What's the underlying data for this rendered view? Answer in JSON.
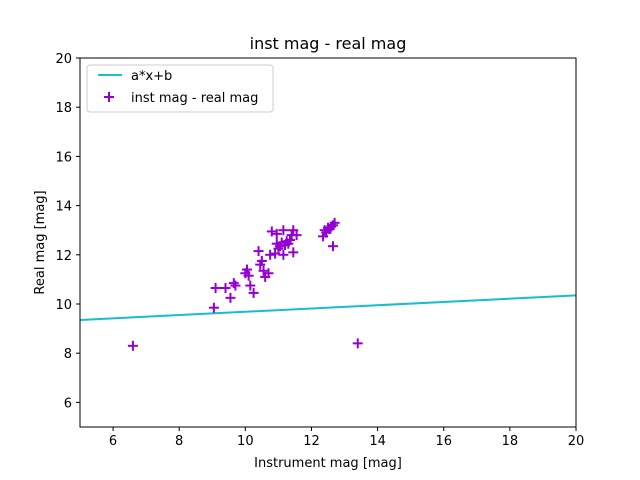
{
  "chart_data": {
    "type": "scatter",
    "title": "inst mag - real mag",
    "xlabel": "Instrument mag [mag]",
    "ylabel": "Real mag [mag]",
    "xlim": [
      5,
      20
    ],
    "ylim": [
      5,
      20
    ],
    "x_ticks": [
      "6",
      "8",
      "10",
      "12",
      "14",
      "16",
      "18",
      "20"
    ],
    "y_ticks": [
      "6",
      "8",
      "10",
      "12",
      "14",
      "16",
      "18",
      "20"
    ],
    "grid": false,
    "legend_position": "top-left",
    "colors": {
      "fit_line": "#17becf",
      "points": "#9400d3"
    },
    "fit_line": {
      "name": "a*x+b",
      "x": [
        5,
        20
      ],
      "y": [
        9.35,
        10.35
      ]
    },
    "series": [
      {
        "name": "inst mag - real mag",
        "marker": "plus",
        "points": [
          [
            6.6,
            8.3
          ],
          [
            9.05,
            9.85
          ],
          [
            9.1,
            10.65
          ],
          [
            9.4,
            10.65
          ],
          [
            9.55,
            10.25
          ],
          [
            9.65,
            10.85
          ],
          [
            9.7,
            10.75
          ],
          [
            10.0,
            11.25
          ],
          [
            10.05,
            11.4
          ],
          [
            10.1,
            11.15
          ],
          [
            10.15,
            10.75
          ],
          [
            10.25,
            10.45
          ],
          [
            10.4,
            12.15
          ],
          [
            10.45,
            11.6
          ],
          [
            10.5,
            11.75
          ],
          [
            10.55,
            11.35
          ],
          [
            10.6,
            11.1
          ],
          [
            10.7,
            11.25
          ],
          [
            10.75,
            12.0
          ],
          [
            10.8,
            12.95
          ],
          [
            10.9,
            12.05
          ],
          [
            10.95,
            12.45
          ],
          [
            10.95,
            12.85
          ],
          [
            11.0,
            12.25
          ],
          [
            11.05,
            12.35
          ],
          [
            11.1,
            12.5
          ],
          [
            11.15,
            12.0
          ],
          [
            11.15,
            13.0
          ],
          [
            11.2,
            12.4
          ],
          [
            11.25,
            12.55
          ],
          [
            11.3,
            12.45
          ],
          [
            11.35,
            12.6
          ],
          [
            11.4,
            12.8
          ],
          [
            11.45,
            12.1
          ],
          [
            11.45,
            13.0
          ],
          [
            11.55,
            12.8
          ],
          [
            12.35,
            12.75
          ],
          [
            12.4,
            13.0
          ],
          [
            12.45,
            12.9
          ],
          [
            12.5,
            13.1
          ],
          [
            12.55,
            13.05
          ],
          [
            12.6,
            13.15
          ],
          [
            12.65,
            13.2
          ],
          [
            12.65,
            12.35
          ],
          [
            12.7,
            13.3
          ],
          [
            13.4,
            8.4
          ]
        ]
      }
    ]
  }
}
